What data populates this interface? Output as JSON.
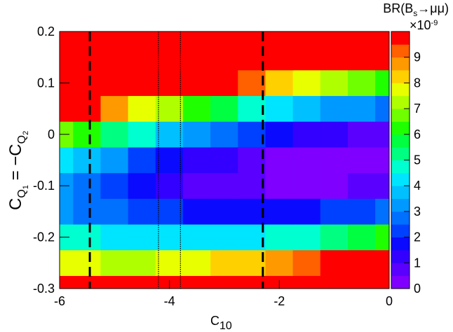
{
  "chart_data": {
    "type": "contour",
    "xlabel": [
      "C",
      "10"
    ],
    "ylabel": [
      "C",
      "Q",
      "1",
      " = −C",
      "Q",
      "2"
    ],
    "zlabel": [
      "BR(B",
      "s",
      "→μμ)"
    ],
    "zscale": [
      "×10",
      "-9"
    ],
    "x": [
      -6,
      -5.5,
      -5,
      -4.5,
      -4,
      -3.5,
      -3,
      -2.5,
      -2,
      -1.5,
      -1,
      -0.5,
      0
    ],
    "y": [
      -0.3,
      -0.25,
      -0.2,
      -0.15,
      -0.1,
      -0.05,
      0,
      0.05,
      0.1,
      0.15,
      0.2
    ],
    "z": [
      [
        11.8,
        11.8,
        11.9,
        12.1,
        12.4,
        12.7,
        13.1,
        13.6,
        14.1,
        14.6,
        15.3,
        16.1,
        16.9
      ],
      [
        7.6,
        7.5,
        7.4,
        7.4,
        7.6,
        7.7,
        8.0,
        8.3,
        8.7,
        9.0,
        9.6,
        10.2,
        10.8
      ],
      [
        4.8,
        4.5,
        4.3,
        4.1,
        4.1,
        4.1,
        4.2,
        4.4,
        4.6,
        4.8,
        5.2,
        5.6,
        6.1
      ],
      [
        3.3,
        2.8,
        2.5,
        2.2,
        2.0,
        1.8,
        1.8,
        1.8,
        1.8,
        1.9,
        2.1,
        2.4,
        2.7
      ],
      [
        3.1,
        2.6,
        2.1,
        1.6,
        1.2,
        0.9,
        0.7,
        0.5,
        0.4,
        0.4,
        0.4,
        0.5,
        0.7
      ],
      [
        4.4,
        3.6,
        3.0,
        2.4,
        1.8,
        1.4,
        1.0,
        0.6,
        0.4,
        0.2,
        0.1,
        0.0,
        0.0
      ],
      [
        6.9,
        6.0,
        5.2,
        4.5,
        3.8,
        3.1,
        2.6,
        2.1,
        1.7,
        1.3,
        1.1,
        0.8,
        0.7
      ],
      [
        10.8,
        9.8,
        8.9,
        7.9,
        7.1,
        6.3,
        5.6,
        4.9,
        4.3,
        3.9,
        3.4,
        3.0,
        2.7
      ],
      [
        16.1,
        14.9,
        13.8,
        12.7,
        11.7,
        10.8,
        9.9,
        9.1,
        8.3,
        7.7,
        7.1,
        6.6,
        6.1
      ],
      [
        22.7,
        21.3,
        20.1,
        18.9,
        17.7,
        16.6,
        15.5,
        14.6,
        13.7,
        12.9,
        12.2,
        11.5,
        10.8
      ],
      [
        30.7,
        29.1,
        27.8,
        26.4,
        25.0,
        23.8,
        22.6,
        21.4,
        20.3,
        19.5,
        18.6,
        17.7,
        16.9
      ]
    ],
    "xlim": [
      -6,
      0
    ],
    "ylim": [
      -0.3,
      0.2
    ],
    "zlim": [
      0,
      10
    ],
    "xticks": [
      -6,
      -4,
      -2,
      0
    ],
    "yticks": [
      -0.3,
      -0.2,
      -0.1,
      0,
      0.1,
      0.2
    ],
    "zticks": [
      0,
      1,
      2,
      3,
      4,
      5,
      6,
      7,
      8,
      9
    ],
    "colors": [
      "#7f00ff",
      "#5a00ff",
      "#3300ff",
      "#0a0aff",
      "#0040ff",
      "#0070ff",
      "#0099ff",
      "#00c0ff",
      "#00e5ff",
      "#00ffd0",
      "#00ff80",
      "#00ff40",
      "#20ff00",
      "#70ff00",
      "#b0ff00",
      "#e8ff00",
      "#ffd000",
      "#ff9900",
      "#ff6000",
      "#ff0000"
    ],
    "lines": [
      {
        "x": -5.45,
        "style": "dashed"
      },
      {
        "x": -4.2,
        "style": "dotted"
      },
      {
        "x": -3.8,
        "style": "dotted"
      },
      {
        "x": -2.3,
        "style": "dashed"
      }
    ]
  }
}
